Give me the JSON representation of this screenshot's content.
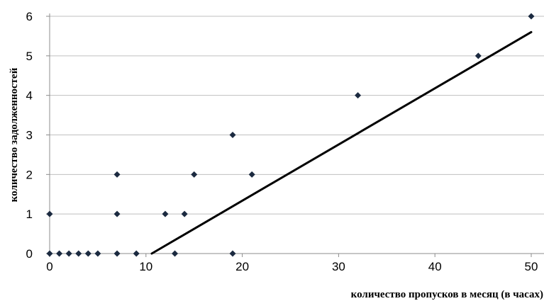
{
  "chart_data": {
    "type": "scatter",
    "title": "",
    "xlabel": "количество пропусков в месяц (в часах)",
    "ylabel": "количество задолженностей",
    "xlim": [
      0,
      50
    ],
    "ylim": [
      0,
      6
    ],
    "x_ticks": [
      0,
      10,
      20,
      30,
      40,
      50
    ],
    "y_ticks": [
      0,
      1,
      2,
      3,
      4,
      5,
      6
    ],
    "grid": "horizontal",
    "legend": "none",
    "marker_color": "#1b2a40",
    "gridline_color": "#bfbfbf",
    "trendline_color": "#000000",
    "points": [
      {
        "x": 0,
        "y": 1
      },
      {
        "x": 0,
        "y": 0
      },
      {
        "x": 1,
        "y": 0
      },
      {
        "x": 2,
        "y": 0
      },
      {
        "x": 3,
        "y": 0
      },
      {
        "x": 4,
        "y": 0
      },
      {
        "x": 5,
        "y": 0
      },
      {
        "x": 7,
        "y": 2
      },
      {
        "x": 7,
        "y": 1
      },
      {
        "x": 7,
        "y": 0
      },
      {
        "x": 9,
        "y": 0
      },
      {
        "x": 12,
        "y": 1
      },
      {
        "x": 13,
        "y": 0
      },
      {
        "x": 14,
        "y": 1
      },
      {
        "x": 15,
        "y": 2
      },
      {
        "x": 19,
        "y": 3
      },
      {
        "x": 19,
        "y": 0
      },
      {
        "x": 21,
        "y": 2
      },
      {
        "x": 32,
        "y": 4
      },
      {
        "x": 44.5,
        "y": 5
      },
      {
        "x": 50,
        "y": 6
      }
    ],
    "trendline": {
      "start": {
        "x": 10.6,
        "y": 0
      },
      "end": {
        "x": 50,
        "y": 5.6
      }
    }
  }
}
